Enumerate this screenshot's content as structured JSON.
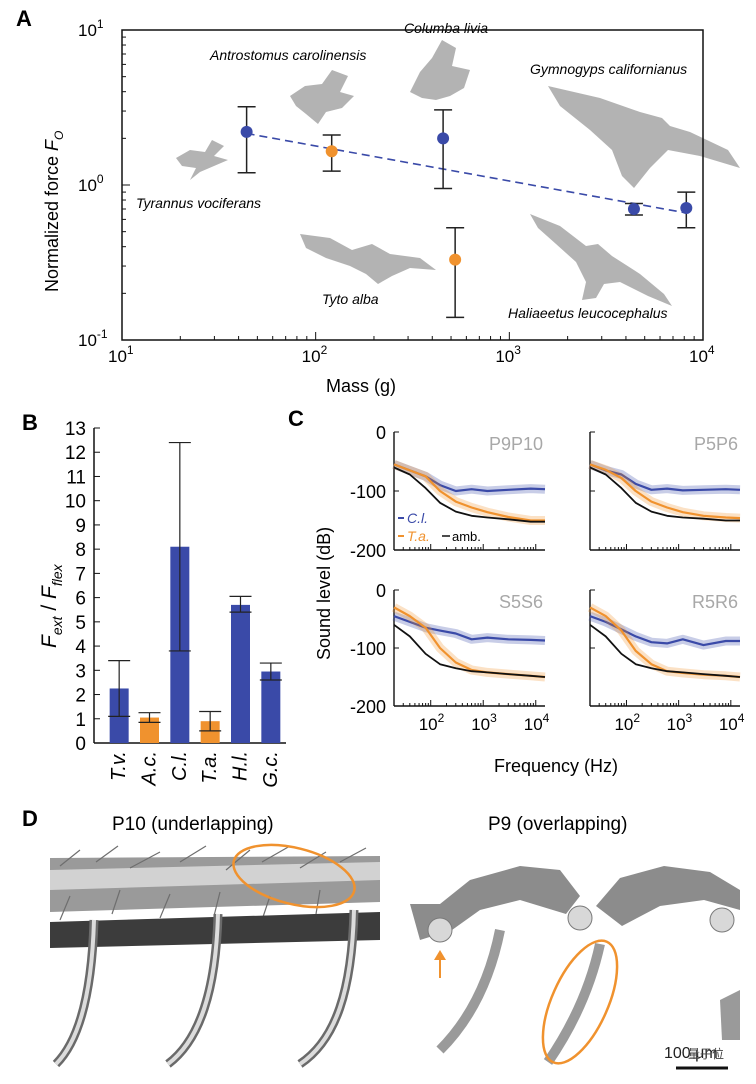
{
  "colors": {
    "blue": "#3a4aa8",
    "orange": "#f0922e",
    "gray_silhouette": "#b3b3b3",
    "title_gray": "#a8a8a8",
    "axis": "#111111"
  },
  "panel_a": {
    "label": "A",
    "ylabel": "Normalized force",
    "ylabel_symbol": "F",
    "ylabel_sub": "O",
    "xlabel": "Mass (g)",
    "xticks": [
      {
        "base": "10",
        "exp": "1"
      },
      {
        "base": "10",
        "exp": "2"
      },
      {
        "base": "10",
        "exp": "3"
      },
      {
        "base": "10",
        "exp": "4"
      }
    ],
    "yticks": [
      {
        "base": "10",
        "exp": "1"
      },
      {
        "base": "10",
        "exp": "0"
      },
      {
        "base": "10",
        "exp": "-1"
      }
    ],
    "species": [
      "Antrostomus carolinensis",
      "Columba livia",
      "Gymnogyps californianus",
      "Tyrannus vociferans",
      "Tyto alba",
      "Haliaeetus leucocephalus"
    ]
  },
  "chart_data": [
    {
      "panel": "A",
      "type": "scatter",
      "xscale": "log",
      "yscale": "log",
      "xlim": [
        10,
        10000
      ],
      "ylim": [
        0.1,
        10
      ],
      "xlabel": "Mass (g)",
      "ylabel": "Normalized force",
      "points": [
        {
          "species": "Tyrannus vociferans",
          "x": 44,
          "y": 2.2,
          "lo": 1.2,
          "hi": 3.2,
          "color": "blue"
        },
        {
          "species": "Antrostomus carolinensis",
          "x": 121,
          "y": 1.65,
          "lo": 1.23,
          "hi": 2.1,
          "color": "orange"
        },
        {
          "species": "Columba livia",
          "x": 455,
          "y": 2.0,
          "lo": 0.95,
          "hi": 3.05,
          "color": "blue"
        },
        {
          "species": "Tyto alba",
          "x": 525,
          "y": 0.33,
          "lo": 0.14,
          "hi": 0.53,
          "color": "orange"
        },
        {
          "species": "Haliaeetus leucocephalus",
          "x": 4400,
          "y": 0.7,
          "lo": 0.64,
          "hi": 0.76,
          "color": "blue"
        },
        {
          "species": "Gymnogyps californianus",
          "x": 8200,
          "y": 0.71,
          "lo": 0.53,
          "hi": 0.9,
          "color": "blue"
        }
      ],
      "fit_line": {
        "x": [
          44,
          8200
        ],
        "y": [
          2.15,
          0.66
        ],
        "style": "dashed",
        "color": "blue"
      }
    },
    {
      "panel": "B",
      "type": "bar",
      "categories": [
        "T.v.",
        "A.c.",
        "C.l.",
        "T.a.",
        "H.l.",
        "G.c."
      ],
      "values": [
        2.25,
        1.05,
        8.1,
        0.9,
        5.7,
        2.95
      ],
      "errors_low": [
        1.1,
        0.85,
        3.8,
        0.5,
        5.4,
        2.6
      ],
      "errors_high": [
        3.4,
        1.25,
        12.4,
        1.3,
        6.05,
        3.3
      ],
      "colors": [
        "blue",
        "orange",
        "blue",
        "orange",
        "blue",
        "blue"
      ],
      "ylim": [
        0,
        13
      ],
      "yticks": [
        0,
        1,
        2,
        3,
        4,
        5,
        6,
        7,
        8,
        9,
        10,
        11,
        12,
        13
      ],
      "ylabel": "F_ext / F_flex"
    },
    {
      "panel": "C",
      "type": "line",
      "xscale": "log",
      "xlim": [
        20,
        15000
      ],
      "ylim": [
        -200,
        0
      ],
      "xlabel": "Frequency (Hz)",
      "ylabel": "Sound level (dB)",
      "subplots": [
        {
          "title": "P9P10",
          "series": [
            {
              "name": "C.l.",
              "x": [
                20,
                40,
                80,
                150,
                300,
                600,
                1200,
                3000,
                8000,
                15000
              ],
              "y": [
                -55,
                -65,
                -75,
                -90,
                -100,
                -97,
                -100,
                -98,
                -96,
                -97
              ]
            },
            {
              "name": "T.a.",
              "x": [
                20,
                40,
                80,
                150,
                300,
                600,
                1200,
                3000,
                8000,
                15000
              ],
              "y": [
                -55,
                -65,
                -75,
                -100,
                -118,
                -128,
                -136,
                -144,
                -150,
                -150
              ]
            },
            {
              "name": "amb.",
              "x": [
                20,
                40,
                80,
                150,
                300,
                600,
                1200,
                3000,
                8000,
                15000
              ],
              "y": [
                -60,
                -72,
                -95,
                -120,
                -135,
                -142,
                -145,
                -148,
                -152,
                -152
              ]
            }
          ]
        },
        {
          "title": "P5P6",
          "series": [
            {
              "name": "C.l.",
              "x": [
                20,
                40,
                80,
                150,
                300,
                600,
                1200,
                3000,
                8000,
                15000
              ],
              "y": [
                -55,
                -65,
                -72,
                -88,
                -98,
                -96,
                -99,
                -98,
                -97,
                -98
              ]
            },
            {
              "name": "T.a.",
              "x": [
                20,
                40,
                80,
                150,
                300,
                600,
                1200,
                3000,
                8000,
                15000
              ],
              "y": [
                -55,
                -64,
                -78,
                -100,
                -118,
                -128,
                -136,
                -142,
                -145,
                -146
              ]
            },
            {
              "name": "amb.",
              "x": [
                20,
                40,
                80,
                150,
                300,
                600,
                1200,
                3000,
                8000,
                15000
              ],
              "y": [
                -60,
                -72,
                -95,
                -120,
                -135,
                -142,
                -145,
                -147,
                -150,
                -150
              ]
            }
          ]
        },
        {
          "title": "S5S6",
          "series": [
            {
              "name": "C.l.",
              "x": [
                20,
                40,
                80,
                150,
                300,
                600,
                1200,
                3000,
                8000,
                15000
              ],
              "y": [
                -45,
                -55,
                -65,
                -70,
                -75,
                -85,
                -82,
                -85,
                -86,
                -87
              ]
            },
            {
              "name": "T.a.",
              "x": [
                20,
                40,
                80,
                150,
                300,
                600,
                1200,
                3000,
                8000,
                15000
              ],
              "y": [
                -30,
                -45,
                -65,
                -100,
                -125,
                -138,
                -142,
                -145,
                -148,
                -150
              ]
            },
            {
              "name": "amb.",
              "x": [
                20,
                40,
                80,
                150,
                300,
                600,
                1200,
                3000,
                8000,
                15000
              ],
              "y": [
                -60,
                -80,
                -110,
                -128,
                -135,
                -140,
                -142,
                -145,
                -148,
                -150
              ]
            }
          ]
        },
        {
          "title": "R5R6",
          "series": [
            {
              "name": "C.l.",
              "x": [
                20,
                40,
                80,
                150,
                300,
                600,
                1200,
                3000,
                8000,
                15000
              ],
              "y": [
                -45,
                -55,
                -68,
                -80,
                -90,
                -92,
                -85,
                -95,
                -88,
                -88
              ]
            },
            {
              "name": "T.a.",
              "x": [
                20,
                40,
                80,
                150,
                300,
                600,
                1200,
                3000,
                8000,
                15000
              ],
              "y": [
                -30,
                -45,
                -70,
                -105,
                -128,
                -140,
                -143,
                -146,
                -148,
                -150
              ]
            },
            {
              "name": "amb.",
              "x": [
                20,
                40,
                80,
                150,
                300,
                600,
                1200,
                3000,
                8000,
                15000
              ],
              "y": [
                -60,
                -80,
                -110,
                -128,
                -135,
                -140,
                -142,
                -145,
                -148,
                -150
              ]
            }
          ]
        }
      ],
      "legend": [
        "C.l.",
        "T.a.",
        "amb."
      ]
    }
  ],
  "panel_b": {
    "label": "B",
    "ylabel_main": "F",
    "ylabel_sub1": "ext",
    "ylabel_sep": " / ",
    "ylabel_sub2": "flex"
  },
  "panel_c": {
    "label": "C",
    "ylabel": "Sound level (dB)",
    "xlabel": "Frequency (Hz)",
    "yticks": [
      "0",
      "-100",
      "-200"
    ],
    "xtick_base": "10",
    "xtick_exps": [
      "2",
      "3",
      "4"
    ],
    "legend": {
      "cl": "C.l.",
      "ta": "T.a.",
      "amb": "amb."
    }
  },
  "panel_d": {
    "label": "D",
    "left_title": "P10 (underlapping)",
    "right_title": "P9 (overlapping)",
    "scalebar": "100 μm",
    "watermark": "量子位"
  }
}
